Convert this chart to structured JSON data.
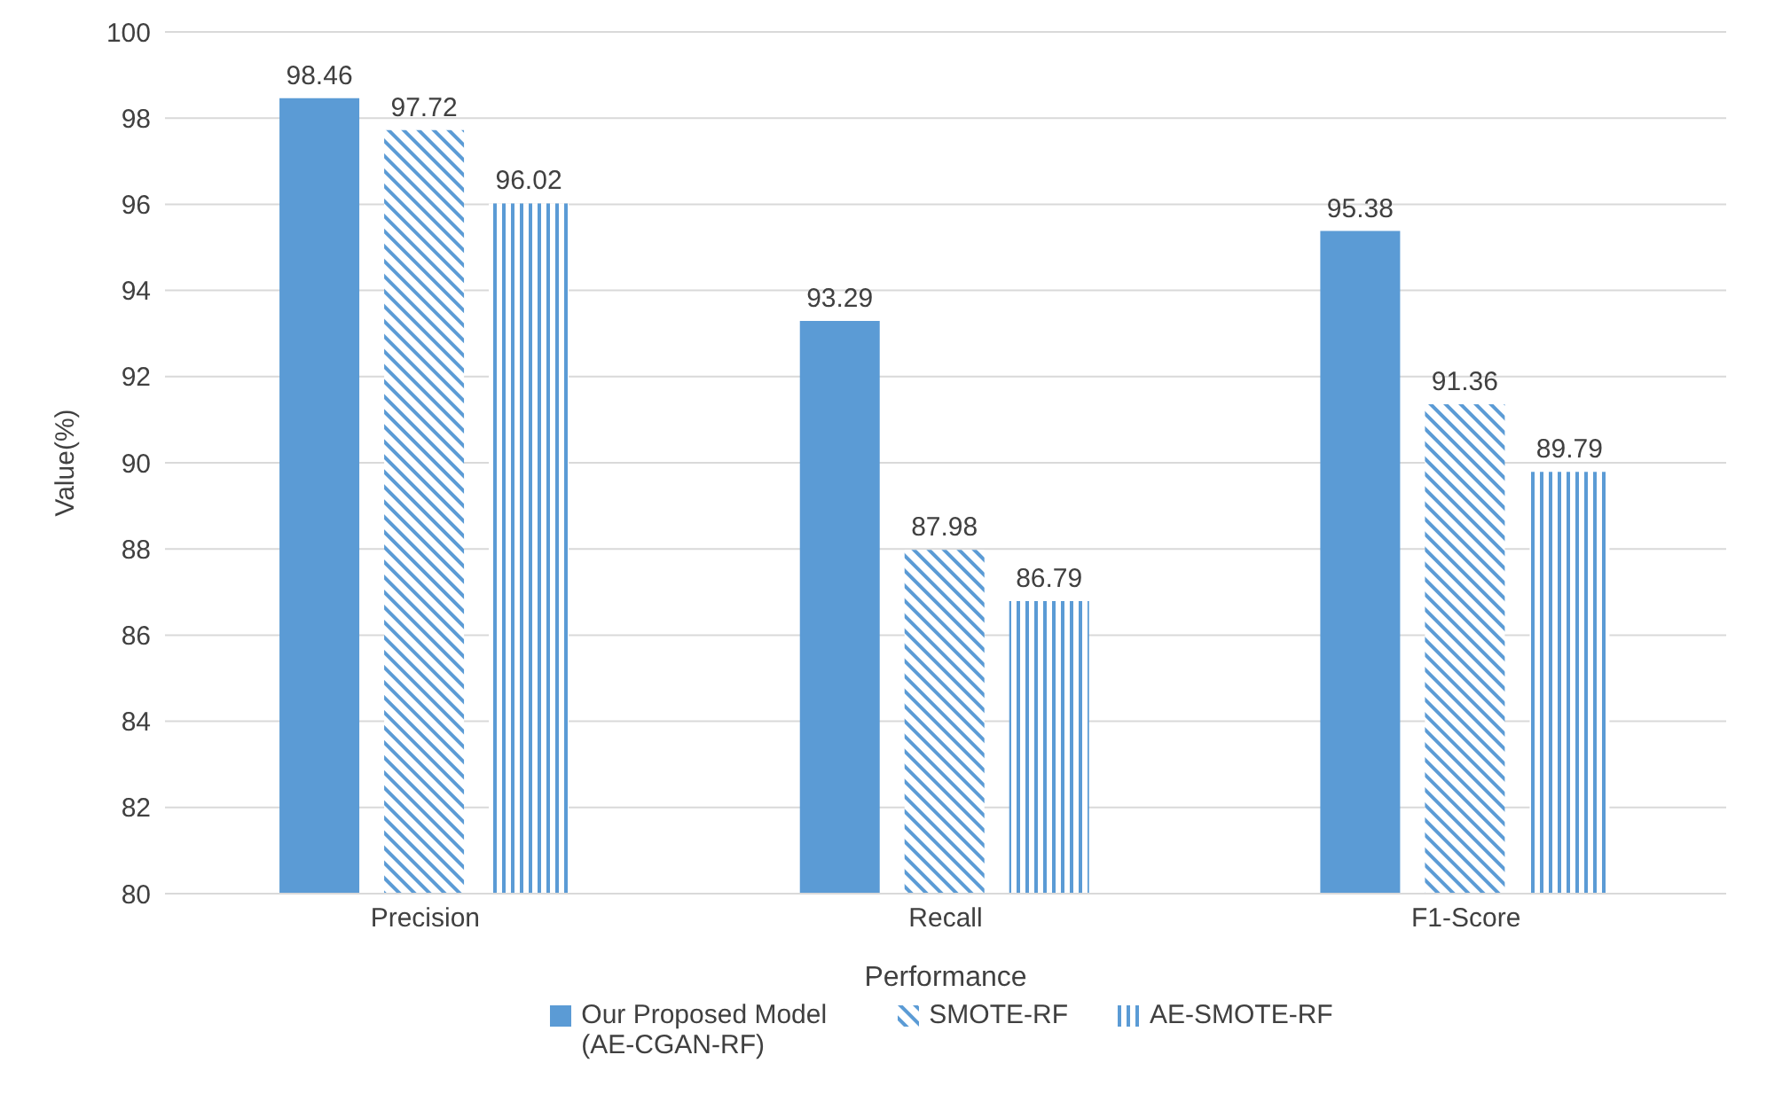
{
  "chart_data": {
    "type": "bar",
    "xlabel": "Performance",
    "ylabel": "Value(%)",
    "categories": [
      "Precision",
      "Recall",
      "F1-Score"
    ],
    "series": [
      {
        "name": "Our Proposed Model (AE-CGAN-RF)",
        "color": "#5b9bd5",
        "values": [
          98.46,
          93.29,
          95.38
        ]
      },
      {
        "name": "SMOTE-RF",
        "color": "#5b9bd5",
        "values": [
          97.72,
          87.98,
          91.36
        ]
      },
      {
        "name": "AE-SMOTE-RF",
        "color": "#5b9bd5",
        "values": [
          96.02,
          86.79,
          89.79
        ]
      }
    ],
    "ylim": [
      80,
      100
    ],
    "yticks": [
      80,
      82,
      84,
      86,
      88,
      90,
      92,
      94,
      96,
      98,
      100
    ],
    "grid": "y",
    "legend": "bottom",
    "data_labels": true
  }
}
